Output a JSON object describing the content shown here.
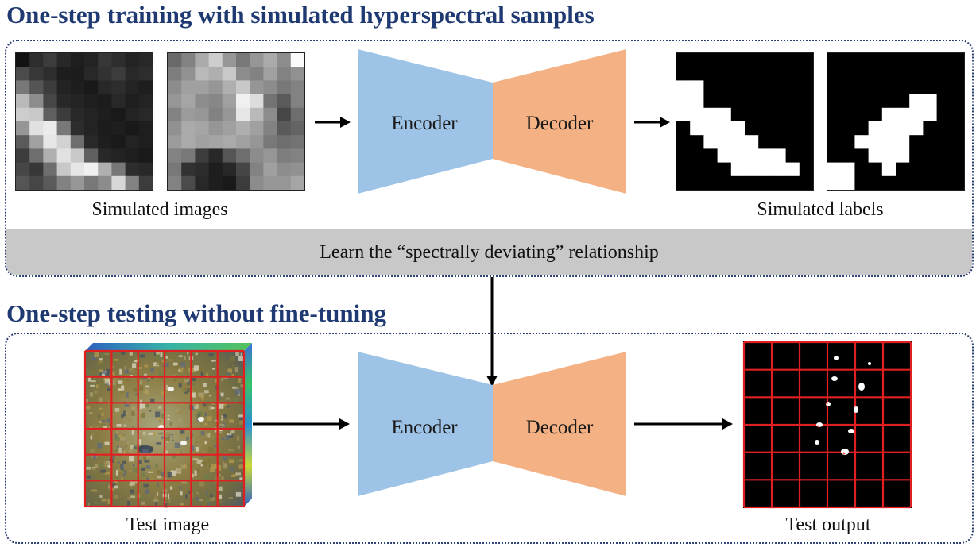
{
  "training": {
    "heading": "One-step training with simulated hyperspectral samples",
    "images_caption": "Simulated images",
    "labels_caption": "Simulated labels",
    "learn_label": "Learn the “spectrally deviating” relationship",
    "encoder_label": "Encoder",
    "decoder_label": "Decoder"
  },
  "testing": {
    "heading": "One-step testing without fine-tuning",
    "image_caption": "Test image",
    "output_caption": "Test output",
    "encoder_label": "Encoder",
    "decoder_label": "Decoder"
  },
  "colors": {
    "heading": "#1f3a72",
    "encoder": "#9dc3e6",
    "decoder": "#f4b183",
    "band": "#c8c8c8",
    "grid_line": "#e02020"
  },
  "simulated_images": [
    [
      [
        18,
        45,
        60,
        40,
        30,
        35,
        55,
        45,
        35,
        40
      ],
      [
        75,
        55,
        45,
        30,
        28,
        40,
        50,
        60,
        40,
        45
      ],
      [
        120,
        85,
        60,
        35,
        30,
        25,
        40,
        45,
        35,
        30
      ],
      [
        185,
        140,
        70,
        40,
        35,
        30,
        28,
        40,
        30,
        35
      ],
      [
        205,
        200,
        95,
        60,
        40,
        35,
        30,
        25,
        35,
        40
      ],
      [
        150,
        225,
        235,
        120,
        45,
        35,
        28,
        30,
        25,
        30
      ],
      [
        90,
        160,
        230,
        210,
        110,
        40,
        30,
        25,
        35,
        30
      ],
      [
        60,
        110,
        175,
        225,
        200,
        95,
        40,
        35,
        30,
        25
      ],
      [
        70,
        55,
        110,
        200,
        230,
        240,
        175,
        120,
        45,
        40
      ],
      [
        85,
        70,
        90,
        130,
        150,
        120,
        140,
        215,
        130,
        60
      ]
    ],
    [
      [
        105,
        130,
        170,
        205,
        150,
        120,
        150,
        170,
        140,
        250
      ],
      [
        125,
        145,
        185,
        175,
        200,
        140,
        130,
        160,
        130,
        145
      ],
      [
        140,
        160,
        160,
        150,
        175,
        200,
        150,
        140,
        120,
        130
      ],
      [
        150,
        165,
        140,
        135,
        160,
        240,
        220,
        115,
        90,
        130
      ],
      [
        130,
        155,
        150,
        130,
        150,
        230,
        185,
        140,
        70,
        110
      ],
      [
        145,
        170,
        165,
        150,
        160,
        175,
        160,
        130,
        90,
        100
      ],
      [
        155,
        170,
        160,
        165,
        170,
        160,
        150,
        120,
        110,
        115
      ],
      [
        130,
        120,
        60,
        40,
        85,
        110,
        140,
        150,
        125,
        130
      ],
      [
        120,
        50,
        45,
        30,
        40,
        70,
        130,
        160,
        140,
        145
      ],
      [
        130,
        75,
        40,
        30,
        25,
        60,
        140,
        150,
        150,
        165
      ]
    ]
  ],
  "simulated_labels": [
    [
      [
        0,
        0,
        0,
        0,
        0,
        0,
        0,
        0,
        0,
        0
      ],
      [
        0,
        0,
        0,
        0,
        0,
        0,
        0,
        0,
        0,
        0
      ],
      [
        1,
        1,
        0,
        0,
        0,
        0,
        0,
        0,
        0,
        0
      ],
      [
        1,
        1,
        0,
        0,
        0,
        0,
        0,
        0,
        0,
        0
      ],
      [
        1,
        1,
        1,
        1,
        0,
        0,
        0,
        0,
        0,
        0
      ],
      [
        0,
        1,
        1,
        1,
        1,
        0,
        0,
        0,
        0,
        0
      ],
      [
        0,
        0,
        1,
        1,
        1,
        1,
        0,
        0,
        0,
        0
      ],
      [
        0,
        0,
        0,
        1,
        1,
        1,
        1,
        1,
        0,
        0
      ],
      [
        0,
        0,
        0,
        0,
        1,
        1,
        1,
        1,
        1,
        0
      ],
      [
        0,
        0,
        0,
        0,
        0,
        0,
        0,
        0,
        0,
        0
      ]
    ],
    [
      [
        0,
        0,
        0,
        0,
        0,
        0,
        0,
        0,
        0,
        0
      ],
      [
        0,
        0,
        0,
        0,
        0,
        0,
        0,
        0,
        0,
        0
      ],
      [
        0,
        0,
        0,
        0,
        0,
        0,
        0,
        0,
        0,
        0
      ],
      [
        0,
        0,
        0,
        0,
        0,
        0,
        1,
        1,
        0,
        0
      ],
      [
        0,
        0,
        0,
        0,
        1,
        1,
        1,
        1,
        0,
        0
      ],
      [
        0,
        0,
        0,
        1,
        1,
        1,
        1,
        0,
        0,
        0
      ],
      [
        0,
        0,
        1,
        1,
        1,
        1,
        0,
        0,
        0,
        0
      ],
      [
        0,
        0,
        0,
        1,
        1,
        1,
        0,
        0,
        0,
        0
      ],
      [
        1,
        1,
        0,
        0,
        1,
        0,
        0,
        0,
        0,
        0
      ],
      [
        1,
        1,
        0,
        0,
        0,
        0,
        0,
        0,
        0,
        0
      ]
    ]
  ],
  "test_image_grid": [
    6,
    6
  ],
  "test_output_grid": [
    6,
    6
  ]
}
